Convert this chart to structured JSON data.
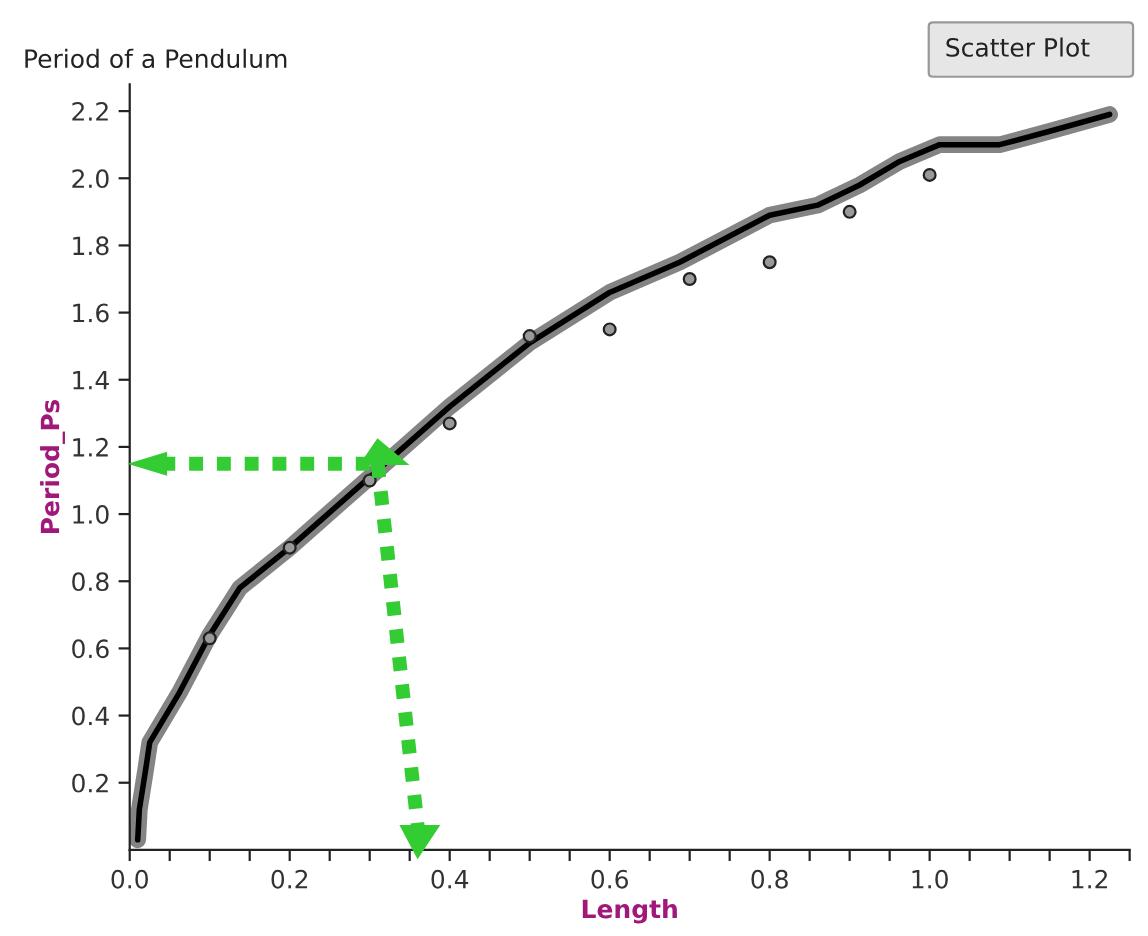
{
  "chart_data": {
    "type": "scatter",
    "title": "Period of a Pendulum",
    "xlabel": "Length",
    "ylabel": "Period_Ps",
    "annotations": [
      "Scatter Plot"
    ],
    "xlim": [
      0,
      1.25
    ],
    "ylim": [
      0,
      2.28
    ],
    "xticks": [
      {
        "value": 0,
        "label": "0.0"
      },
      {
        "value": 0.05,
        "label": null
      },
      {
        "value": 0.1,
        "label": null
      },
      {
        "value": 0.15,
        "label": null
      },
      {
        "value": 0.2,
        "label": "0.2"
      },
      {
        "value": 0.25,
        "label": null
      },
      {
        "value": 0.3,
        "label": null
      },
      {
        "value": 0.35,
        "label": null
      },
      {
        "value": 0.4,
        "label": "0.4"
      },
      {
        "value": 0.45,
        "label": null
      },
      {
        "value": 0.5,
        "label": null
      },
      {
        "value": 0.55,
        "label": null
      },
      {
        "value": 0.6,
        "label": "0.6"
      },
      {
        "value": 0.65,
        "label": null
      },
      {
        "value": 0.7,
        "label": null
      },
      {
        "value": 0.75,
        "label": null
      },
      {
        "value": 0.8,
        "label": "0.8"
      },
      {
        "value": 0.85,
        "label": null
      },
      {
        "value": 0.9,
        "label": null
      },
      {
        "value": 0.95,
        "label": null
      },
      {
        "value": 1.0,
        "label": "1.0"
      },
      {
        "value": 1.05,
        "label": null
      },
      {
        "value": 1.1,
        "label": null
      },
      {
        "value": 1.15,
        "label": null
      },
      {
        "value": 1.2,
        "label": "1.2"
      },
      {
        "value": 1.25,
        "label": null
      }
    ],
    "yticks": [
      0.2,
      0.4,
      0.6,
      0.8,
      {
        "value": 1.0,
        "label": "1.0"
      },
      1.2,
      1.4,
      1.6,
      1.8,
      {
        "value": 2.0,
        "label": "2.0"
      },
      2.2
    ],
    "grid": false,
    "legend": false,
    "marker": "circle",
    "series": [
      {
        "color": "#999999",
        "x": [
          0.1,
          0.2,
          0.3,
          0.4,
          0.5,
          0.6,
          0.7,
          0.8,
          0.9,
          1.0
        ],
        "values": [
          0.63,
          0.9,
          1.1,
          1.27,
          1.53,
          1.55,
          1.7,
          1.75,
          1.9,
          2.01
        ]
      },
      {
        "type": "line",
        "color": "#000000",
        "marker": "none",
        "line_style": "solid",
        "x": [
          0.01,
          0.012,
          0.02,
          0.025,
          0.0625,
          0.1,
          0.1375,
          0.2,
          0.3,
          0.4,
          0.5,
          0.6,
          0.6875,
          0.8,
          0.86,
          0.9125,
          0.9625,
          1.0125,
          1.0875,
          1.15,
          1.225
        ],
        "values": [
          0.03,
          0.12,
          0.24,
          0.32,
          0.47,
          0.64,
          0.78,
          0.9,
          1.11,
          1.32,
          1.51,
          1.66,
          1.75,
          1.89,
          1.92,
          1.98,
          2.05,
          2.1,
          2.1,
          2.14,
          2.19
        ]
      }
    ]
  }
}
